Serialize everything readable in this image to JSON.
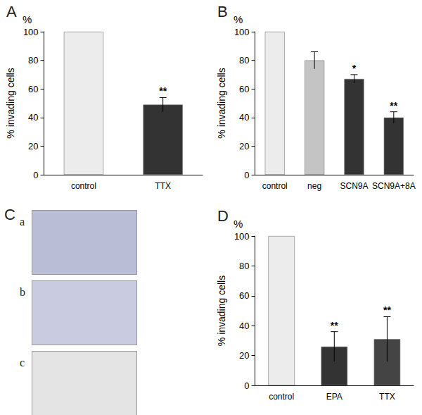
{
  "chart_data": [
    {
      "type": "bar",
      "title": "A",
      "annotations": [
        "%"
      ],
      "ylabel": "% invading cells",
      "categories": [
        "control",
        "TTX"
      ],
      "values": [
        100,
        49
      ],
      "errors": [
        null,
        5
      ],
      "significance": [
        null,
        "**"
      ],
      "colors": [
        "#ececec",
        "#333333"
      ],
      "ylim": [
        0,
        100
      ],
      "yticks": [
        0,
        20,
        40,
        60,
        80,
        100
      ],
      "grid": false
    },
    {
      "type": "bar",
      "title": "B",
      "annotations": [
        "%"
      ],
      "ylabel": "% invading cells",
      "categories": [
        "control",
        "neg",
        "SCN9A",
        "SCN9A+8A"
      ],
      "values": [
        100,
        80,
        67,
        40
      ],
      "errors": [
        null,
        6,
        3,
        4
      ],
      "significance": [
        null,
        null,
        "*",
        "**"
      ],
      "colors": [
        "#ececec",
        "#c4c4c4",
        "#333333",
        "#333333"
      ],
      "ylim": [
        0,
        100
      ],
      "yticks": [
        0,
        20,
        40,
        60,
        80,
        100
      ],
      "grid": false
    },
    {
      "type": "bar",
      "title": "D",
      "annotations": [
        "%"
      ],
      "ylabel": "% invading cells",
      "categories": [
        "control",
        "EPA",
        "TTX"
      ],
      "values": [
        100,
        26,
        31
      ],
      "errors": [
        null,
        10,
        15
      ],
      "significance": [
        null,
        "**",
        "**"
      ],
      "colors": [
        "#ececec",
        "#333333",
        "#444444"
      ],
      "ylim": [
        0,
        100
      ],
      "yticks": [
        0,
        20,
        40,
        60,
        80,
        100
      ],
      "grid": false
    }
  ],
  "image_panel": {
    "label": "C",
    "images": [
      "a",
      "b",
      "c"
    ]
  }
}
